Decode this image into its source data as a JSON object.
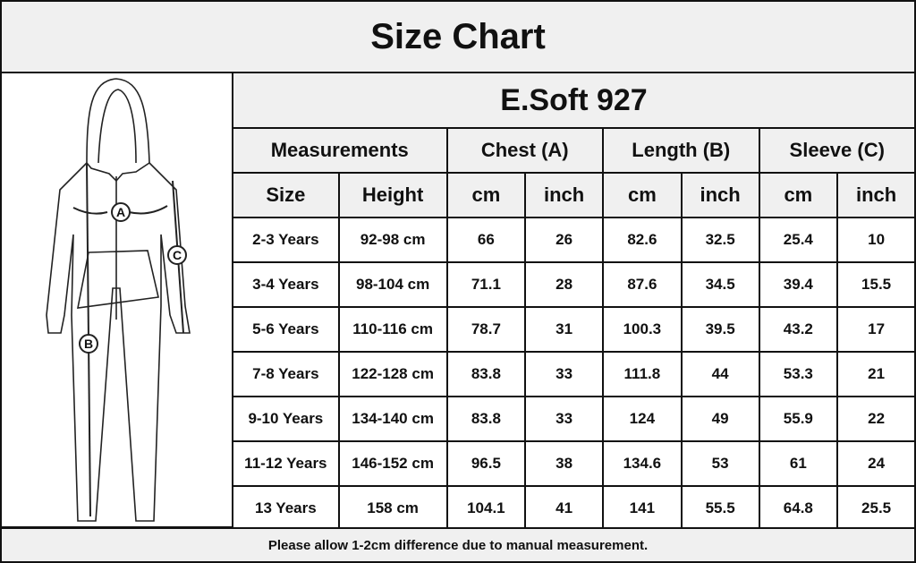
{
  "title": "Size Chart",
  "model": "E.Soft 927",
  "groups": [
    "Measurements",
    "Chest (A)",
    "Length (B)",
    "Sleeve (C)"
  ],
  "subheaders": [
    "Size",
    "Height",
    "cm",
    "inch",
    "cm",
    "inch",
    "cm",
    "inch"
  ],
  "rows": [
    [
      "2-3 Years",
      "92-98 cm",
      "66",
      "26",
      "82.6",
      "32.5",
      "25.4",
      "10"
    ],
    [
      "3-4 Years",
      "98-104 cm",
      "71.1",
      "28",
      "87.6",
      "34.5",
      "39.4",
      "15.5"
    ],
    [
      "5-6 Years",
      "110-116 cm",
      "78.7",
      "31",
      "100.3",
      "39.5",
      "43.2",
      "17"
    ],
    [
      "7-8 Years",
      "122-128 cm",
      "83.8",
      "33",
      "111.8",
      "44",
      "53.3",
      "21"
    ],
    [
      "9-10 Years",
      "134-140 cm",
      "83.8",
      "33",
      "124",
      "49",
      "55.9",
      "22"
    ],
    [
      "11-12 Years",
      "146-152 cm",
      "96.5",
      "38",
      "134.6",
      "53",
      "61",
      "24"
    ],
    [
      "13 Years",
      "158 cm",
      "104.1",
      "41",
      "141",
      "55.5",
      "64.8",
      "25.5"
    ]
  ],
  "figure": {
    "labels": [
      "A",
      "B",
      "C"
    ]
  },
  "footer": "Please allow 1-2cm difference due to manual measurement."
}
